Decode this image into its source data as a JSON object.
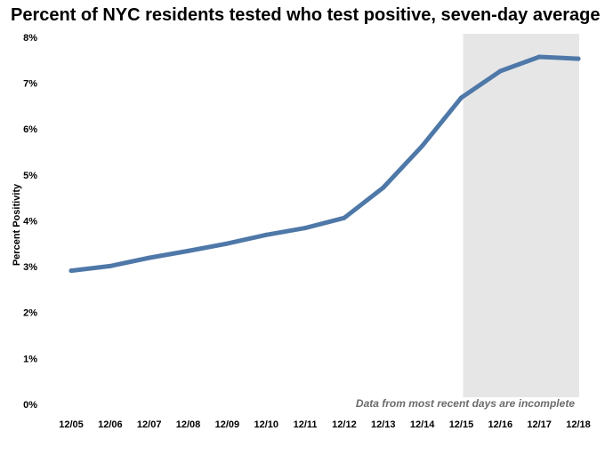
{
  "chart_data": {
    "type": "line",
    "title": "Percent of NYC residents tested who test positive, seven-day average",
    "xlabel": "",
    "ylabel": "Percent Positivity",
    "categories": [
      "12/05",
      "12/06",
      "12/07",
      "12/08",
      "12/09",
      "12/10",
      "12/11",
      "12/12",
      "12/13",
      "12/14",
      "12/15",
      "12/16",
      "12/17",
      "12/18"
    ],
    "series": [
      {
        "values": [
          3.03,
          3.13,
          3.31,
          3.46,
          3.62,
          3.81,
          3.96,
          4.18,
          4.84,
          5.75,
          6.8,
          7.38,
          7.69,
          7.65
        ]
      }
    ],
    "ylim": [
      0,
      8
    ],
    "yticks": [
      0,
      1,
      2,
      3,
      4,
      5,
      6,
      7,
      8
    ],
    "ytick_labels": [
      "0%",
      "1%",
      "2%",
      "3%",
      "4%",
      "5%",
      "6%",
      "7%",
      "8%"
    ],
    "grid": false,
    "legend": "none",
    "shaded_range": {
      "from": "12/15",
      "to": "12/18",
      "note": "Data from most recent days are incomplete"
    },
    "colors": {
      "line": "#4e78a8",
      "shade": "#e6e6e7",
      "note": "#6b6b6b"
    }
  }
}
